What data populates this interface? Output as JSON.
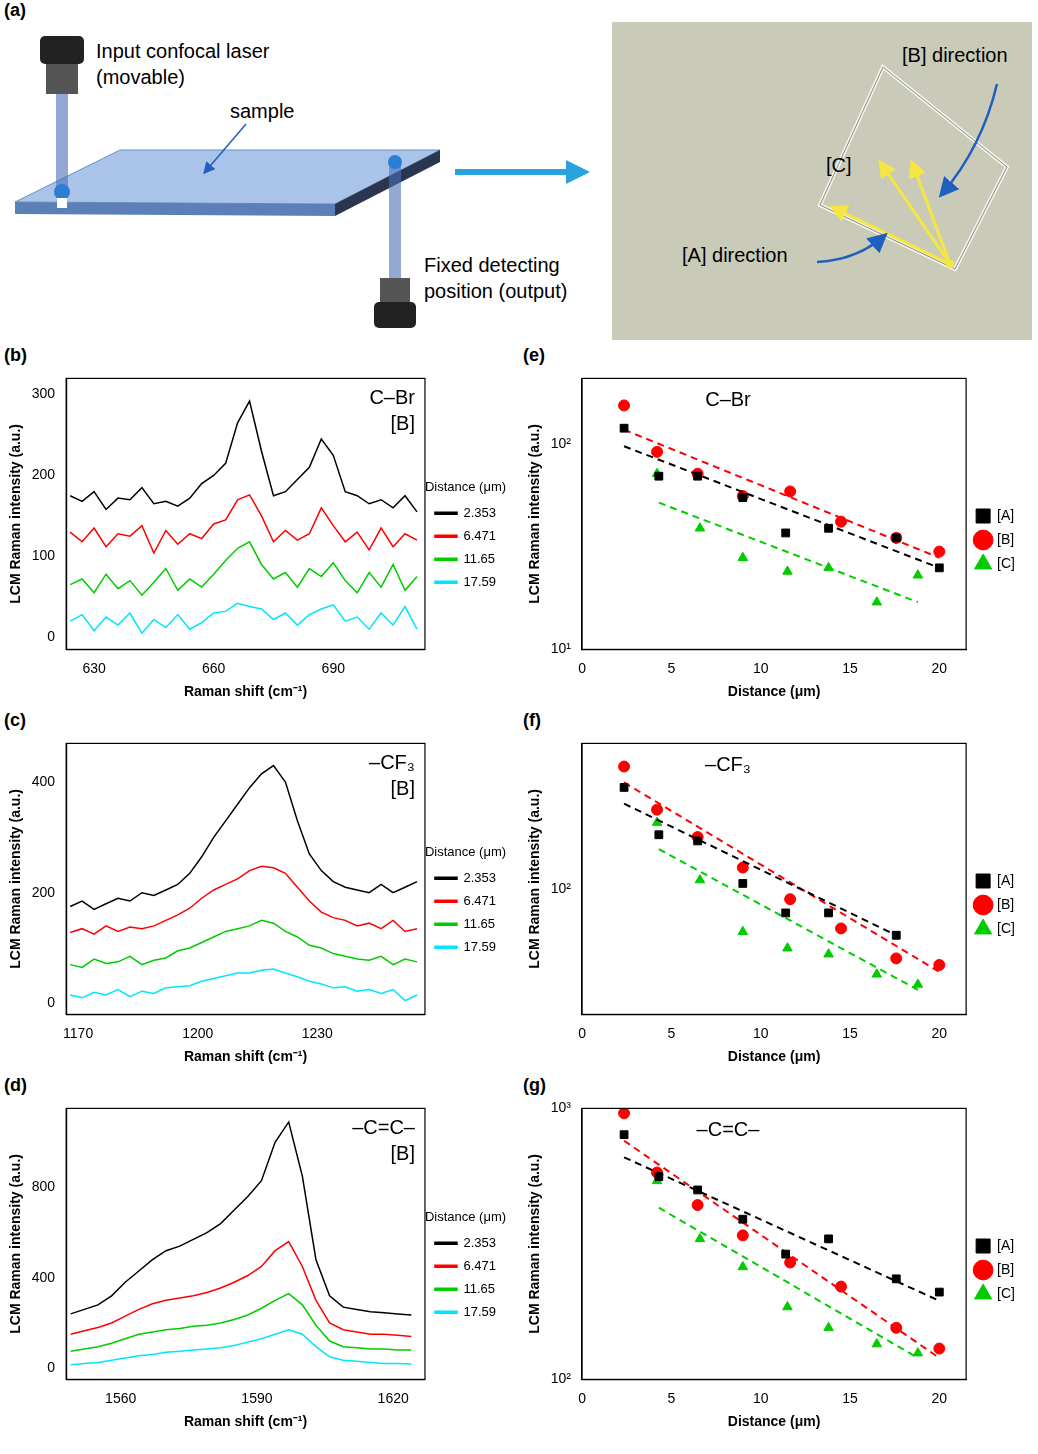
{
  "diagram": {
    "panel_label": "(a)",
    "laser_label": [
      "Input confocal laser",
      "(movable)"
    ],
    "sample_label": "sample",
    "detector_label": [
      "Fixed detecting",
      "position (output)"
    ],
    "photo_labels": {
      "B": "[B] direction",
      "C": "[C]",
      "A": "[A] direction"
    }
  },
  "chart_data": [
    {
      "type": "line",
      "panel_label": "(b)",
      "annotations": [
        "C–Br",
        "[B]"
      ],
      "x_label": "Raman shift (cm⁻¹)",
      "y_label": "LCM Raman intensity (a.u.)",
      "legend": "right",
      "legend_title": "Distance (μm)",
      "grid": false,
      "xlim": [
        623,
        713
      ],
      "xticks": [
        630,
        660,
        690
      ],
      "ylim": [
        -15,
        320
      ],
      "yticks": [
        0,
        100,
        200,
        300
      ],
      "x": [
        624,
        627,
        630,
        633,
        636,
        639,
        642,
        645,
        648,
        651,
        654,
        657,
        660,
        663,
        666,
        669,
        672,
        675,
        678,
        681,
        684,
        687,
        690,
        693,
        696,
        699,
        702,
        705,
        708,
        711
      ],
      "series": [
        {
          "name": "2.353",
          "color": "#000000",
          "values": [
            175,
            168,
            180,
            158,
            172,
            170,
            185,
            165,
            168,
            162,
            172,
            190,
            200,
            215,
            265,
            292,
            230,
            175,
            180,
            195,
            210,
            245,
            225,
            180,
            175,
            165,
            170,
            160,
            175,
            155
          ]
        },
        {
          "name": "6.471",
          "color": "#ff0000",
          "values": [
            130,
            118,
            135,
            112,
            128,
            125,
            138,
            104,
            132,
            115,
            128,
            122,
            140,
            145,
            170,
            176,
            150,
            118,
            132,
            120,
            128,
            160,
            138,
            118,
            130,
            108,
            135,
            112,
            128,
            120
          ]
        },
        {
          "name": "11.65",
          "color": "#00cc00",
          "values": [
            65,
            72,
            55,
            78,
            60,
            70,
            52,
            68,
            85,
            58,
            72,
            62,
            78,
            95,
            110,
            118,
            90,
            72,
            80,
            62,
            85,
            75,
            92,
            70,
            55,
            80,
            62,
            90,
            58,
            75
          ]
        },
        {
          "name": "17.59",
          "color": "#00e5ff",
          "values": [
            20,
            28,
            8,
            25,
            15,
            30,
            5,
            22,
            12,
            28,
            10,
            18,
            30,
            32,
            42,
            38,
            35,
            22,
            30,
            15,
            28,
            35,
            40,
            20,
            25,
            10,
            30,
            15,
            38,
            10
          ]
        }
      ]
    },
    {
      "type": "line",
      "panel_label": "(c)",
      "annotations": [
        "–CF₃",
        "[B]"
      ],
      "x_label": "Raman shift (cm⁻¹)",
      "y_label": "LCM Raman intensity (a.u.)",
      "legend": "right",
      "legend_title": "Distance (μm)",
      "grid": false,
      "xlim": [
        1167,
        1257
      ],
      "xticks": [
        1170,
        1200,
        1230
      ],
      "ylim": [
        -20,
        470
      ],
      "yticks": [
        0,
        200,
        400
      ],
      "x": [
        1168,
        1171,
        1174,
        1177,
        1180,
        1183,
        1186,
        1189,
        1192,
        1195,
        1198,
        1201,
        1204,
        1207,
        1210,
        1213,
        1216,
        1219,
        1222,
        1225,
        1228,
        1231,
        1234,
        1237,
        1240,
        1243,
        1246,
        1249,
        1252,
        1255
      ],
      "series": [
        {
          "name": "2.353",
          "color": "#000000",
          "values": [
            175,
            185,
            170,
            180,
            190,
            185,
            200,
            195,
            205,
            215,
            235,
            265,
            300,
            330,
            360,
            390,
            415,
            430,
            400,
            330,
            270,
            240,
            220,
            210,
            205,
            200,
            215,
            200,
            210,
            220
          ]
        },
        {
          "name": "6.471",
          "color": "#ff0000",
          "values": [
            128,
            135,
            125,
            140,
            130,
            138,
            135,
            140,
            150,
            160,
            172,
            190,
            205,
            215,
            225,
            240,
            248,
            245,
            235,
            210,
            185,
            165,
            155,
            150,
            140,
            145,
            135,
            150,
            130,
            135
          ]
        },
        {
          "name": "11.65",
          "color": "#00cc00",
          "values": [
            70,
            65,
            80,
            72,
            75,
            85,
            70,
            78,
            82,
            95,
            100,
            110,
            120,
            130,
            135,
            140,
            150,
            145,
            130,
            120,
            105,
            100,
            90,
            85,
            80,
            78,
            85,
            70,
            80,
            75
          ]
        },
        {
          "name": "17.59",
          "color": "#00e5ff",
          "values": [
            15,
            10,
            20,
            15,
            25,
            12,
            22,
            18,
            28,
            30,
            32,
            40,
            45,
            50,
            55,
            55,
            60,
            62,
            55,
            48,
            40,
            35,
            28,
            30,
            22,
            25,
            18,
            25,
            5,
            15
          ]
        }
      ]
    },
    {
      "type": "line",
      "panel_label": "(d)",
      "annotations": [
        "–C=C–",
        "[B]"
      ],
      "x_label": "Raman shift (cm⁻¹)",
      "y_label": "LCM Raman intensity (a.u.)",
      "legend": "right",
      "legend_title": "Distance (μm)",
      "grid": false,
      "xlim": [
        1548,
        1627
      ],
      "xticks": [
        1560,
        1590,
        1620
      ],
      "ylim": [
        -50,
        1150
      ],
      "yticks": [
        0,
        400,
        800
      ],
      "x": [
        1549,
        1552,
        1555,
        1558,
        1561,
        1564,
        1567,
        1570,
        1573,
        1576,
        1579,
        1582,
        1585,
        1588,
        1591,
        1594,
        1597,
        1600,
        1603,
        1606,
        1609,
        1612,
        1615,
        1618,
        1621,
        1624
      ],
      "series": [
        {
          "name": "2.353",
          "color": "#000000",
          "values": [
            240,
            260,
            280,
            320,
            380,
            430,
            480,
            520,
            540,
            570,
            600,
            640,
            700,
            760,
            830,
            1000,
            1090,
            850,
            480,
            320,
            270,
            260,
            250,
            245,
            240,
            235
          ]
        },
        {
          "name": "6.471",
          "color": "#ff0000",
          "values": [
            150,
            165,
            180,
            200,
            230,
            260,
            285,
            300,
            310,
            320,
            335,
            355,
            380,
            410,
            450,
            520,
            560,
            450,
            300,
            200,
            170,
            160,
            150,
            150,
            145,
            140
          ]
        },
        {
          "name": "11.65",
          "color": "#00cc00",
          "values": [
            75,
            85,
            95,
            110,
            130,
            150,
            160,
            170,
            175,
            185,
            190,
            200,
            215,
            235,
            265,
            300,
            330,
            280,
            190,
            120,
            95,
            90,
            85,
            85,
            80,
            80
          ]
        },
        {
          "name": "17.59",
          "color": "#00e5ff",
          "values": [
            15,
            20,
            25,
            35,
            45,
            55,
            60,
            70,
            75,
            80,
            85,
            90,
            100,
            115,
            130,
            150,
            170,
            150,
            95,
            50,
            35,
            30,
            25,
            20,
            20,
            18
          ]
        }
      ]
    },
    {
      "type": "scatter",
      "panel_label": "(e)",
      "title": "C–Br",
      "x_label": "Distance (μm)",
      "y_label": "LCM Raman intensity (a.u.)",
      "legend": "right",
      "grid": false,
      "log": "y",
      "xlim": [
        0,
        21.5
      ],
      "xticks": [
        0,
        5,
        10,
        15,
        20
      ],
      "ylim": [
        10,
        210
      ],
      "yticks": [
        {
          "value": 10,
          "label": "10¹"
        },
        {
          "value": 100,
          "label": "10²"
        }
      ],
      "series": [
        {
          "name": "[A]",
          "color": "#000000",
          "marker": "square",
          "x": [
            2.353,
            4.3,
            6.471,
            9.0,
            11.4,
            13.8,
            17.59,
            20.0
          ],
          "values": [
            120,
            70,
            70,
            55,
            37,
            39,
            35,
            25
          ],
          "fit": {
            "x": [
              2.353,
              20.0
            ],
            "values": [
              98,
              25
            ],
            "line_style": "dashed"
          }
        },
        {
          "name": "[B]",
          "color": "#ff0000",
          "marker": "circle",
          "x": [
            2.353,
            4.2,
            6.471,
            9.0,
            11.65,
            14.5,
            17.59,
            20.0
          ],
          "values": [
            155,
            92,
            72,
            56,
            59,
            42,
            35,
            30
          ],
          "fit": {
            "x": [
              2.353,
              20.0
            ],
            "values": [
              118,
              28
            ],
            "line_style": "dashed"
          }
        },
        {
          "name": "[C]",
          "color": "#00cc00",
          "marker": "triangle",
          "x": [
            4.2,
            6.6,
            9.0,
            11.5,
            13.8,
            16.5,
            18.8
          ],
          "values": [
            72,
            39,
            28,
            24,
            25,
            17,
            23
          ],
          "fit": {
            "x": [
              4.3,
              18.8
            ],
            "values": [
              52,
              17
            ],
            "line_style": "dashed"
          }
        }
      ]
    },
    {
      "type": "scatter",
      "panel_label": "(f)",
      "title": "–CF₃",
      "x_label": "Distance (μm)",
      "y_label": "LCM Raman intensity (a.u.)",
      "legend": "right",
      "grid": false,
      "log": "y",
      "xlim": [
        0,
        21.5
      ],
      "xticks": [
        0,
        5,
        10,
        15,
        20
      ],
      "ylim": [
        35,
        340
      ],
      "yticks": [
        {
          "value": 100,
          "label": "10²"
        }
      ],
      "series": [
        {
          "name": "[A]",
          "color": "#000000",
          "marker": "square",
          "x": [
            2.353,
            4.3,
            6.471,
            9.0,
            11.4,
            13.8,
            17.59
          ],
          "values": [
            235,
            158,
            150,
            105,
            82,
            82,
            68
          ],
          "fit": {
            "x": [
              2.353,
              17.59
            ],
            "values": [
              205,
              68
            ],
            "line_style": "dashed"
          }
        },
        {
          "name": "[B]",
          "color": "#ff0000",
          "marker": "circle",
          "x": [
            2.353,
            4.2,
            6.471,
            9.0,
            11.65,
            14.5,
            17.59,
            20.0
          ],
          "values": [
            280,
            195,
            155,
            120,
            92,
            72,
            56,
            53
          ],
          "fit": {
            "x": [
              2.353,
              20.0
            ],
            "values": [
              245,
              50
            ],
            "line_style": "dashed"
          }
        },
        {
          "name": "[C]",
          "color": "#00cc00",
          "marker": "triangle",
          "x": [
            4.2,
            6.6,
            9.0,
            11.5,
            13.8,
            16.5,
            18.8
          ],
          "values": [
            175,
            108,
            70,
            61,
            58,
            49,
            45
          ],
          "fit": {
            "x": [
              4.3,
              18.8
            ],
            "values": [
              140,
              43
            ],
            "line_style": "dashed"
          }
        }
      ]
    },
    {
      "type": "scatter",
      "panel_label": "(g)",
      "title": "–C=C–",
      "x_label": "Distance (μm)",
      "y_label": "LCM Raman intensity (a.u.)",
      "legend": "right",
      "grid": false,
      "log": "y",
      "xlim": [
        0,
        21.5
      ],
      "xticks": [
        0,
        5,
        10,
        15,
        20
      ],
      "ylim": [
        100,
        1000
      ],
      "yticks": [
        {
          "value": 100,
          "label": "10²"
        },
        {
          "value": 1000,
          "label": "10³"
        }
      ],
      "series": [
        {
          "name": "[A]",
          "color": "#000000",
          "marker": "square",
          "x": [
            2.353,
            4.3,
            6.471,
            9.0,
            11.4,
            13.8,
            17.59,
            20.0
          ],
          "values": [
            800,
            560,
            500,
            390,
            290,
            330,
            235,
            210
          ],
          "fit": {
            "x": [
              2.353,
              20.0
            ],
            "values": [
              660,
              195
            ],
            "line_style": "dashed"
          }
        },
        {
          "name": "[B]",
          "color": "#ff0000",
          "marker": "circle",
          "x": [
            2.353,
            4.2,
            6.471,
            9.0,
            11.65,
            14.5,
            17.59,
            20.0
          ],
          "values": [
            960,
            580,
            440,
            340,
            270,
            220,
            155,
            130
          ],
          "fit": {
            "x": [
              2.353,
              20.0
            ],
            "values": [
              760,
              120
            ],
            "line_style": "dashed"
          }
        },
        {
          "name": "[C]",
          "color": "#00cc00",
          "marker": "triangle",
          "x": [
            4.2,
            6.6,
            9.0,
            11.5,
            13.8,
            16.5,
            18.8
          ],
          "values": [
            540,
            330,
            260,
            185,
            155,
            135,
            125
          ],
          "fit": {
            "x": [
              4.3,
              18.8
            ],
            "values": [
              430,
              120
            ],
            "line_style": "dashed"
          }
        }
      ]
    }
  ]
}
